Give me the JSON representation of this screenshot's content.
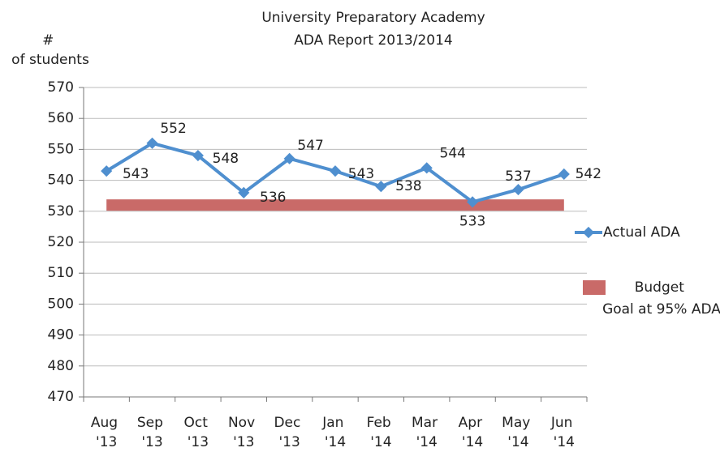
{
  "chart_data": {
    "type": "line",
    "title": "University Preparatory Academy",
    "subtitle": "ADA Report 2013/2014",
    "ylabel": "# of students",
    "categories": [
      "Aug '13",
      "Sep '13",
      "Oct '13",
      "Nov '13",
      "Dec '13",
      "Jan '14",
      "Feb '14",
      "Mar '14",
      "Apr '14",
      "May '14",
      "Jun '14"
    ],
    "series": [
      {
        "name": "Actual ADA",
        "color": "#4f8fcf",
        "values": [
          543,
          552,
          548,
          536,
          547,
          543,
          538,
          544,
          533,
          537,
          542
        ]
      },
      {
        "name": "Budget Goal at 95% ADA",
        "color": "#c0504d",
        "values": [
          532,
          532,
          532,
          532,
          532,
          532,
          532,
          532,
          532,
          532,
          532
        ]
      }
    ],
    "ylim": [
      470,
      570
    ],
    "yticks": [
      470,
      480,
      490,
      500,
      510,
      520,
      530,
      540,
      550,
      560,
      570
    ],
    "grid": true,
    "legend": "right"
  }
}
